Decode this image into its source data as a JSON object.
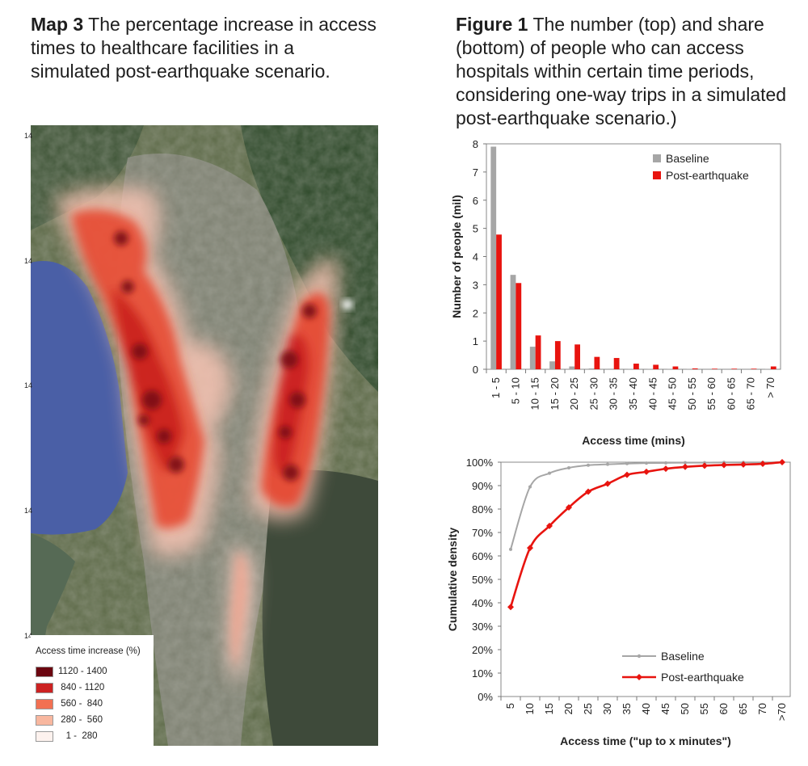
{
  "map_caption": {
    "label": "Map 3",
    "text": " The percentage increase in access times to healthcare facilities in a simulated post-earthquake scenario."
  },
  "figure_caption": {
    "label": "Figure 1",
    "text": " The number (top) and share (bottom) of people who can access hospitals within certain time periods, considering one-way trips in a simulated post-earthquake scenario.)"
  },
  "map": {
    "tick_fragments": [
      "14",
      "14",
      "14",
      "14",
      "14"
    ],
    "legend": {
      "title": "Access time increase (%)",
      "items": [
        {
          "label": "1120 - 1400",
          "color": "#6b0610"
        },
        {
          "label": " 840 - 1120",
          "color": "#cc2222"
        },
        {
          "label": " 560 -  840",
          "color": "#f27052"
        },
        {
          "label": " 280 -  560",
          "color": "#f8b79f"
        },
        {
          "label": "   1 -  280",
          "color": "#fdf2ee"
        }
      ]
    }
  },
  "chart_data": [
    {
      "type": "bar",
      "title": "",
      "xlabel": "Access time (mins)",
      "ylabel": "Number of people (mil)",
      "ylim": [
        0,
        8
      ],
      "yticks": [
        "0",
        "1",
        "2",
        "3",
        "4",
        "5",
        "6",
        "7",
        "8"
      ],
      "legend_position": "top-right",
      "categories": [
        "1 - 5",
        "5 - 10",
        "10 - 15",
        "15 - 20",
        "20 - 25",
        "25 - 30",
        "30 - 35",
        "35 - 40",
        "40 - 45",
        "45 - 50",
        "50 - 55",
        "55 - 60",
        "60 - 65",
        "65 - 70",
        "> 70"
      ],
      "series": [
        {
          "name": "Baseline",
          "color": "#a6a6a6",
          "values": [
            7.9,
            3.35,
            0.8,
            0.28,
            0.1,
            0.03,
            0.02,
            0.01,
            0.01,
            0.01,
            0.01,
            0,
            0,
            0,
            0.01
          ]
        },
        {
          "name": "Post-earthquake",
          "color": "#e8140f",
          "values": [
            4.78,
            3.06,
            1.2,
            1.0,
            0.88,
            0.44,
            0.4,
            0.2,
            0.16,
            0.1,
            0.03,
            0.02,
            0.02,
            0.02,
            0.1
          ]
        }
      ]
    },
    {
      "type": "line",
      "title": "",
      "xlabel": "Access time (\"up to x minutes\")",
      "ylabel": "Cumulative density",
      "ylim": [
        0,
        100
      ],
      "yticks": [
        "0%",
        "10%",
        "20%",
        "30%",
        "40%",
        "50%",
        "60%",
        "70%",
        "80%",
        "90%",
        "100%"
      ],
      "legend_position": "bottom-right",
      "categories": [
        "5",
        "10",
        "15",
        "20",
        "25",
        "30",
        "35",
        "40",
        "45",
        "50",
        "55",
        "60",
        "65",
        "70",
        ">70"
      ],
      "series": [
        {
          "name": "Baseline",
          "color": "#a6a6a6",
          "values": [
            62.8,
            89.5,
            95.3,
            97.6,
            98.7,
            99.1,
            99.4,
            99.6,
            99.7,
            99.8,
            99.8,
            99.9,
            99.9,
            99.9,
            100
          ]
        },
        {
          "name": "Post-earthquake",
          "color": "#e8140f",
          "values": [
            38.2,
            63.4,
            72.8,
            80.7,
            87.4,
            90.8,
            94.6,
            95.9,
            97.2,
            98.0,
            98.5,
            98.8,
            99.0,
            99.3,
            100
          ]
        }
      ]
    }
  ]
}
